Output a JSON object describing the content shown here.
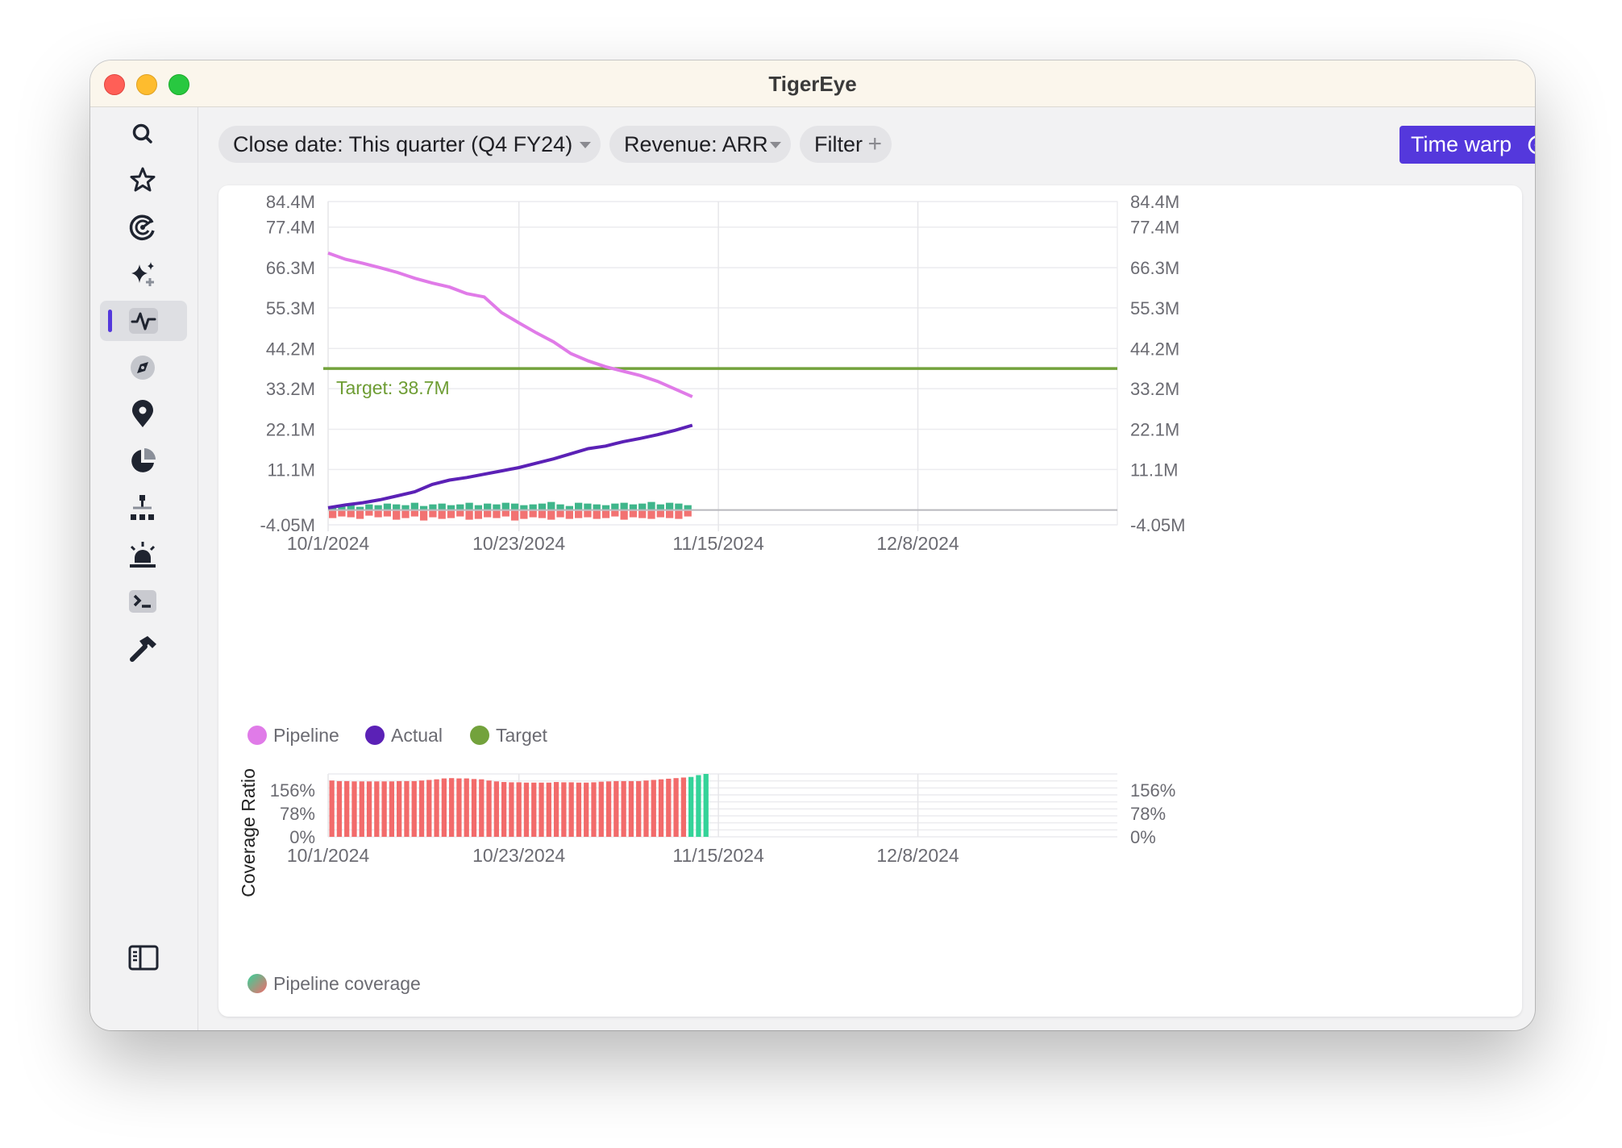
{
  "window": {
    "title": "TigerEye"
  },
  "sidebar": {
    "items": [
      {
        "icon": "search-icon"
      },
      {
        "icon": "star-icon"
      },
      {
        "icon": "radar-icon"
      },
      {
        "icon": "sparkles-icon"
      },
      {
        "icon": "activity-icon",
        "active": true
      },
      {
        "icon": "compass-icon"
      },
      {
        "icon": "map-pin-icon"
      },
      {
        "icon": "pie-chart-icon"
      },
      {
        "icon": "hierarchy-icon"
      },
      {
        "icon": "siren-icon"
      },
      {
        "icon": "terminal-icon"
      },
      {
        "icon": "hammer-icon"
      }
    ],
    "bottom_icon": "sidebar-toggle-icon"
  },
  "toolbar": {
    "filters": [
      {
        "label": "Close date: This quarter (Q4 FY24)"
      },
      {
        "label": "Revenue: ARR"
      }
    ],
    "filter_label": "Filter",
    "time_warp_label": "Time warp",
    "more_label": "•••"
  },
  "chart_data": [
    {
      "type": "line",
      "y_ticks": [
        "84.4M",
        "77.4M",
        "66.3M",
        "55.3M",
        "44.2M",
        "33.2M",
        "22.1M",
        "11.1M",
        "-4.05M"
      ],
      "y_tick_values": [
        84.4,
        77.4,
        66.3,
        55.3,
        44.2,
        33.2,
        22.1,
        11.1,
        -4.05
      ],
      "ylim": [
        -4.05,
        84.4
      ],
      "x_ticks": [
        "10/1/2024",
        "10/23/2024",
        "11/15/2024",
        "12/8/2024"
      ],
      "x_range": [
        "2024-10-01",
        "2024-12-31"
      ],
      "grid": true,
      "target_label": "Target: 38.7M",
      "series": [
        {
          "name": "Pipeline",
          "color": "#e07be8",
          "x": [
            "2024-10-01",
            "2024-10-03",
            "2024-10-05",
            "2024-10-07",
            "2024-10-09",
            "2024-10-11",
            "2024-10-13",
            "2024-10-15",
            "2024-10-17",
            "2024-10-19",
            "2024-10-21",
            "2024-10-23",
            "2024-10-25",
            "2024-10-27",
            "2024-10-29",
            "2024-10-31",
            "2024-11-02",
            "2024-11-04",
            "2024-11-06",
            "2024-11-08",
            "2024-11-10",
            "2024-11-12"
          ],
          "values": [
            70.3,
            68.6,
            67.5,
            66.3,
            65.0,
            63.4,
            62.1,
            61.0,
            59.2,
            58.3,
            54.0,
            51.2,
            48.5,
            46.0,
            42.8,
            40.8,
            39.2,
            38.0,
            36.8,
            35.2,
            33.1,
            31.0
          ]
        },
        {
          "name": "Actual",
          "color": "#5b21b6",
          "x": [
            "2024-10-01",
            "2024-10-03",
            "2024-10-05",
            "2024-10-07",
            "2024-10-09",
            "2024-10-11",
            "2024-10-13",
            "2024-10-15",
            "2024-10-17",
            "2024-10-19",
            "2024-10-21",
            "2024-10-23",
            "2024-10-25",
            "2024-10-27",
            "2024-10-29",
            "2024-10-31",
            "2024-11-02",
            "2024-11-04",
            "2024-11-06",
            "2024-11-08",
            "2024-11-10",
            "2024-11-12"
          ],
          "values": [
            0.6,
            1.4,
            2.0,
            2.8,
            3.9,
            5.0,
            7.0,
            8.2,
            8.9,
            9.8,
            10.7,
            11.6,
            12.8,
            14.0,
            15.4,
            16.8,
            17.5,
            18.7,
            19.6,
            20.6,
            21.8,
            23.2
          ]
        },
        {
          "name": "Target",
          "color": "#73a23c",
          "values": [
            38.7
          ]
        }
      ],
      "legend": [
        "Pipeline",
        "Actual",
        "Target"
      ]
    },
    {
      "type": "bar",
      "ylabel": "Coverage Ratio",
      "y_ticks": [
        "156%",
        "78%",
        "0%"
      ],
      "y_tick_values": [
        156,
        78,
        0
      ],
      "ylim": [
        0,
        210
      ],
      "x_ticks": [
        "10/1/2024",
        "10/23/2024",
        "11/15/2024",
        "12/8/2024"
      ],
      "series_name": "Pipeline coverage",
      "colors": {
        "below": "#f26b6b",
        "above": "#34d399"
      },
      "values": [
        188,
        186,
        186,
        185,
        185,
        185,
        185,
        185,
        185,
        186,
        186,
        186,
        188,
        190,
        192,
        195,
        196,
        195,
        195,
        193,
        192,
        188,
        185,
        183,
        182,
        182,
        181,
        181,
        181,
        181,
        183,
        182,
        182,
        181,
        181,
        182,
        184,
        185,
        186,
        186,
        186,
        186,
        188,
        190,
        192,
        194,
        196,
        198,
        200,
        206,
        210
      ],
      "legend": [
        "Pipeline coverage"
      ]
    }
  ]
}
